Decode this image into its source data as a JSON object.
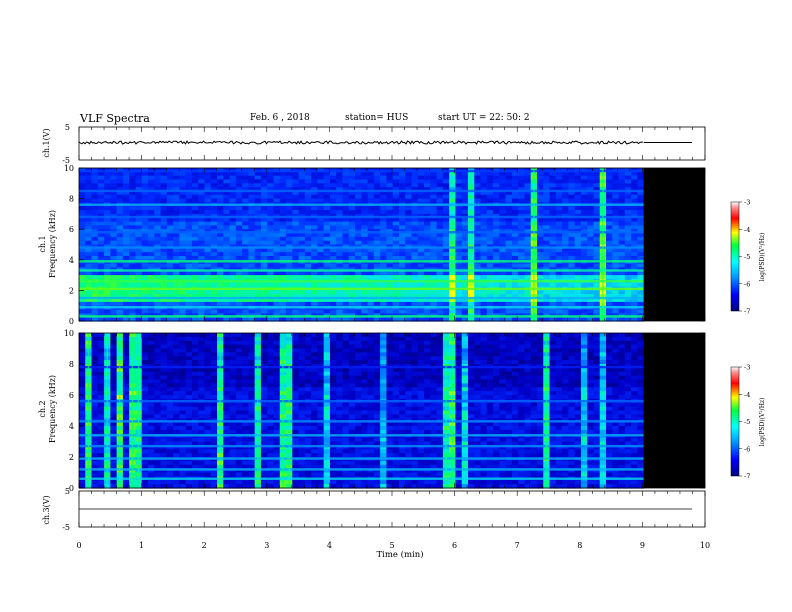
{
  "header": {
    "title": "VLF Spectra",
    "date": "Feb. 6  , 2018",
    "station": "station= HUS",
    "start": "start  UT  =   22: 50: 2"
  },
  "chart_data": [
    {
      "type": "line",
      "panel": "ch1-waveform",
      "ylabel": "ch.1(V)",
      "ylim": [
        -5,
        5
      ],
      "yticks": [
        "5",
        "-5"
      ],
      "x_range_min": [
        0,
        9.02
      ],
      "series_level_v": 0.3
    },
    {
      "type": "heatmap",
      "panel": "ch1-spectrogram",
      "ylabel_top": "ch.1",
      "ylabel": "Frequency  (kHz)",
      "ylim": [
        0,
        10
      ],
      "yticks": [
        "0",
        "2",
        "4",
        "6",
        "8",
        "10"
      ],
      "data_end_min": 9.02,
      "colorbar": {
        "label": "log(PSD)(V²/Hz)",
        "range": [
          -7,
          -3
        ],
        "ticks": [
          "-3",
          "-4",
          "-5",
          "-6",
          "-7"
        ]
      }
    },
    {
      "type": "heatmap",
      "panel": "ch2-spectrogram",
      "ylabel_top": "ch.2",
      "ylabel": "Frequency  (kHz)",
      "ylim": [
        0,
        10
      ],
      "yticks": [
        "0",
        "2",
        "4",
        "6",
        "8",
        "10"
      ],
      "data_end_min": 9.02,
      "colorbar": {
        "label": "log(PSD)(V²/Hz)",
        "range": [
          -7,
          -3
        ],
        "ticks": [
          "-3",
          "-4",
          "-5",
          "-6",
          "-7"
        ]
      }
    },
    {
      "type": "line",
      "panel": "ch3-waveform",
      "ylabel": "ch.3(V)",
      "ylim": [
        -5,
        5
      ],
      "yticks": [
        "5",
        "-5"
      ],
      "series_level_v": 0
    }
  ],
  "xaxis": {
    "label": "Time  (min)",
    "range": [
      0,
      10
    ],
    "ticks": [
      "0",
      "1",
      "2",
      "3",
      "4",
      "5",
      "6",
      "7",
      "8",
      "9",
      "10"
    ]
  }
}
